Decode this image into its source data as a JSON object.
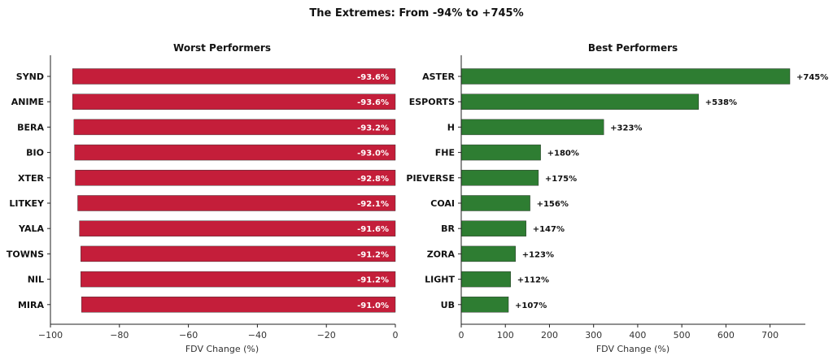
{
  "title": "The Extremes: From -94% to +745%",
  "chart_data": [
    {
      "type": "bar",
      "orientation": "horizontal",
      "title": "Worst Performers",
      "xlabel": "FDV Change (%)",
      "ylabel": "",
      "xlim": [
        -100,
        0
      ],
      "xticks": [
        -100,
        -80,
        -60,
        -40,
        -20,
        0
      ],
      "xtick_labels": [
        "−100",
        "−80",
        "−60",
        "−40",
        "−20",
        "0"
      ],
      "categories": [
        "SYND",
        "ANIME",
        "BERA",
        "BIO",
        "XTER",
        "LITKEY",
        "YALA",
        "TOWNS",
        "NIL",
        "MIRA"
      ],
      "values": [
        -93.6,
        -93.6,
        -93.2,
        -93.0,
        -92.8,
        -92.1,
        -91.6,
        -91.2,
        -91.2,
        -91.0
      ],
      "labels": [
        "-93.6%",
        "-93.6%",
        "-93.2%",
        "-93.0%",
        "-92.8%",
        "-92.1%",
        "-91.6%",
        "-91.2%",
        "-91.2%",
        "-91.0%"
      ],
      "label_position": "inside",
      "color": "#c41e3a",
      "grid": false
    },
    {
      "type": "bar",
      "orientation": "horizontal",
      "title": "Best Performers",
      "xlabel": "FDV Change (%)",
      "ylabel": "",
      "xlim": [
        0,
        780
      ],
      "xticks": [
        0,
        100,
        200,
        300,
        400,
        500,
        600,
        700
      ],
      "xtick_labels": [
        "0",
        "100",
        "200",
        "300",
        "400",
        "500",
        "600",
        "700"
      ],
      "categories": [
        "ASTER",
        "ESPORTS",
        "H",
        "FHE",
        "PIEVERSE",
        "COAI",
        "BR",
        "ZORA",
        "LIGHT",
        "UB"
      ],
      "values": [
        745,
        538,
        323,
        180,
        175,
        156,
        147,
        123,
        112,
        107
      ],
      "labels": [
        "+745%",
        "+538%",
        "+323%",
        "+180%",
        "+175%",
        "+156%",
        "+147%",
        "+123%",
        "+112%",
        "+107%"
      ],
      "label_position": "outside",
      "color": "#2e7d32",
      "grid": false
    }
  ]
}
